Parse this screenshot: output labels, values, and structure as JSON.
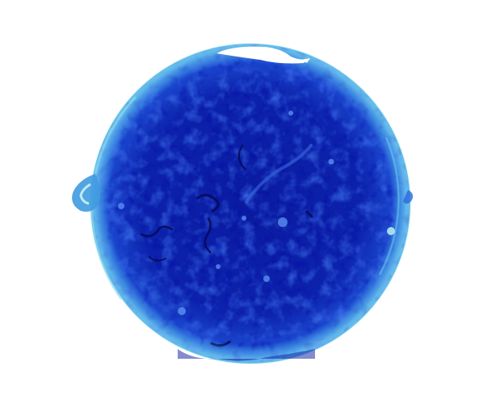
{
  "image": {
    "subject": "solar disk",
    "colormap": "blue",
    "background_color": "#ffffff",
    "palette": {
      "deep": "#00008a",
      "dark": "#0a1aa8",
      "mid": "#1f3fd0",
      "bright": "#3a7ae8",
      "limb": "#4fb0e8",
      "hot": "#bff0f0"
    }
  }
}
